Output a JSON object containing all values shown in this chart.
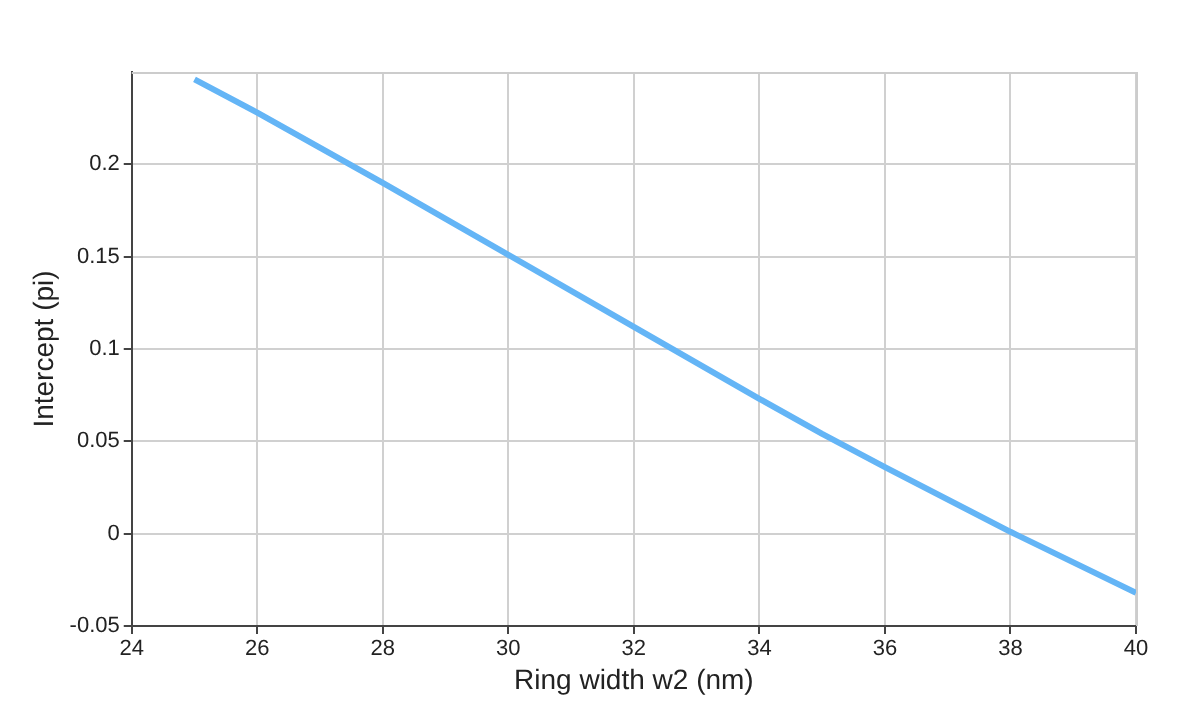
{
  "chart_data": {
    "type": "line",
    "xlabel": "Ring width w2 (nm)",
    "ylabel": "Intercept (pi)",
    "x": [
      25,
      26,
      28,
      30,
      32,
      34,
      35,
      36,
      38,
      40
    ],
    "series": [
      {
        "color": "#64b5f6",
        "values": [
          0.246,
          0.228,
          0.19,
          0.151,
          0.112,
          0.073,
          0.054,
          0.036,
          0.001,
          -0.032
        ]
      }
    ],
    "xlim": [
      24,
      40
    ],
    "xticks": [
      24,
      26,
      28,
      30,
      32,
      34,
      36,
      38,
      40
    ],
    "ylim": [
      -0.05,
      0.25
    ],
    "yticks": [
      -0.05,
      0,
      0.05,
      0.1,
      0.15,
      0.2
    ],
    "grid": true,
    "legend": false,
    "marker": "none",
    "line_style": "solid"
  }
}
